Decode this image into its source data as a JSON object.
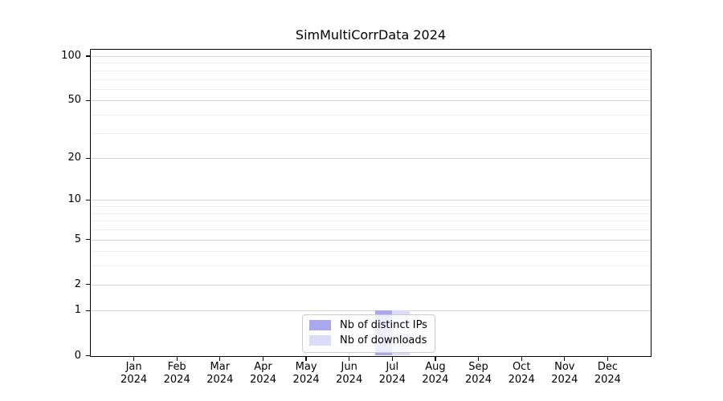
{
  "title": "SimMultiCorrData 2024",
  "chart_data": {
    "type": "bar",
    "title": "SimMultiCorrData 2024",
    "categories": [
      "Jan 2024",
      "Feb 2024",
      "Mar 2024",
      "Apr 2024",
      "May 2024",
      "Jun 2024",
      "Jul 2024",
      "Aug 2024",
      "Sep 2024",
      "Oct 2024",
      "Nov 2024",
      "Dec 2024"
    ],
    "series": [
      {
        "name": "Nb of distinct IPs",
        "color": "#a8a8f0",
        "values": [
          0,
          0,
          0,
          0,
          0,
          0,
          1,
          0,
          0,
          0,
          0,
          0
        ]
      },
      {
        "name": "Nb of downloads",
        "color": "#dcdcf7",
        "values": [
          0,
          0,
          0,
          0,
          0,
          0,
          1,
          0,
          0,
          0,
          0,
          0
        ]
      }
    ],
    "xlabel": "",
    "ylabel": "",
    "y_scale": "log1p",
    "y_ticks": [
      0,
      1,
      2,
      5,
      10,
      20,
      50,
      100
    ],
    "y_minor_gridlines": [
      3,
      4,
      6,
      7,
      8,
      9,
      30,
      40,
      60,
      70,
      80,
      90
    ],
    "ylim": [
      0,
      110.5
    ],
    "grid": "horizontal",
    "legend_position": "lower center"
  },
  "legend": {
    "items": [
      {
        "label": "Nb of distinct IPs",
        "color": "#a8a8f0"
      },
      {
        "label": "Nb of downloads",
        "color": "#dcdcf7"
      }
    ]
  },
  "colors": {
    "axis": "#000000",
    "grid_major": "#d4d4d4",
    "grid_minor": "#efefef",
    "background": "#ffffff",
    "legend_border": "#cccccc"
  }
}
